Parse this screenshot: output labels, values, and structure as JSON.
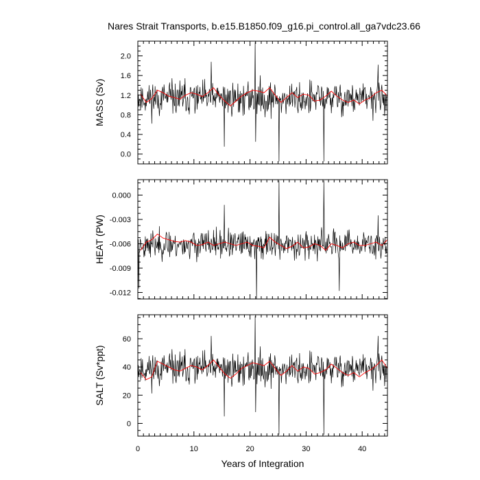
{
  "figure": {
    "title": "Nares Strait Transports, b.e15.B1850.f09_g16.pi_control.all_ga7vdc23.66",
    "xlabel": "Years of Integration"
  },
  "chart_data": [
    {
      "type": "line",
      "ylabel": "MASS (Sv)",
      "xlim": [
        0,
        44.5
      ],
      "ylim": [
        -0.2,
        2.3
      ],
      "xticks": [
        0,
        10,
        20,
        30,
        40
      ],
      "yticks": [
        0.0,
        0.4,
        0.8,
        1.2,
        1.6,
        2.0
      ],
      "ytick_labels": [
        "0.0",
        "0.4",
        "0.8",
        "1.2",
        "1.6",
        "2.0"
      ],
      "grid": false,
      "series": [
        {
          "color": "#000000",
          "role": "monthly",
          "base": 1.13,
          "amp": 0.28,
          "seed": 11,
          "spikes": [
            [
              13.1,
              1.88
            ],
            [
              15.4,
              0.15
            ],
            [
              20.9,
              2.28
            ],
            [
              21.0,
              0.25
            ],
            [
              25.2,
              -0.15
            ],
            [
              33.2,
              -0.15
            ],
            [
              42.8,
              1.82
            ]
          ]
        },
        {
          "color": "#ff0000",
          "role": "annual-mean",
          "x": [
            0.5,
            1.5,
            2.5,
            3.5,
            4.5,
            5.5,
            6.5,
            7.5,
            8.5,
            9.5,
            10.5,
            11.5,
            12.5,
            13.5,
            14.5,
            15.5,
            16.5,
            17.5,
            18.5,
            19.5,
            20.5,
            21.5,
            22.5,
            23.5,
            24.5,
            25.5,
            26.5,
            27.5,
            28.5,
            29.5,
            30.5,
            31.5,
            32.5,
            33.5,
            34.5,
            35.5,
            36.5,
            37.5,
            38.5,
            39.5,
            40.5,
            41.5,
            42.5,
            43.5,
            44.5
          ],
          "y": [
            1.22,
            1.05,
            1.13,
            1.3,
            1.25,
            1.18,
            1.15,
            1.12,
            1.2,
            1.25,
            1.22,
            1.17,
            1.25,
            1.35,
            1.2,
            1.08,
            0.98,
            1.08,
            1.18,
            1.25,
            1.3,
            1.28,
            1.25,
            1.35,
            1.2,
            1.05,
            1.15,
            1.25,
            1.15,
            1.22,
            1.2,
            1.08,
            1.1,
            1.18,
            1.28,
            1.18,
            1.1,
            1.05,
            1.1,
            1.02,
            1.1,
            1.15,
            1.25,
            1.3,
            1.18
          ]
        }
      ]
    },
    {
      "type": "line",
      "ylabel": "HEAT (PW)",
      "xlim": [
        0,
        44.5
      ],
      "ylim": [
        -0.0128,
        0.0019
      ],
      "xticks": [
        0,
        10,
        20,
        30,
        40
      ],
      "yticks": [
        -0.012,
        -0.009,
        -0.006,
        -0.003,
        0.0
      ],
      "ytick_labels": [
        "-0.012",
        "-0.009",
        "-0.006",
        "-0.003",
        "0.000"
      ],
      "grid": false,
      "series": [
        {
          "color": "#000000",
          "role": "monthly",
          "base": -0.0061,
          "amp": 0.0014,
          "seed": 23,
          "spikes": [
            [
              0.2,
              -0.0115
            ],
            [
              15.4,
              -0.0012
            ],
            [
              21.2,
              -0.0128
            ],
            [
              25.2,
              0.0018
            ],
            [
              33.2,
              0.0018
            ],
            [
              35.9,
              -0.0118
            ],
            [
              42.8,
              -0.0025
            ]
          ]
        },
        {
          "color": "#ff0000",
          "role": "annual-mean",
          "x": [
            0.5,
            1.5,
            2.5,
            3.5,
            4.5,
            5.5,
            6.5,
            7.5,
            8.5,
            9.5,
            10.5,
            11.5,
            12.5,
            13.5,
            14.5,
            15.5,
            16.5,
            17.5,
            18.5,
            19.5,
            20.5,
            21.5,
            22.5,
            23.5,
            24.5,
            25.5,
            26.5,
            27.5,
            28.5,
            29.5,
            30.5,
            31.5,
            32.5,
            33.5,
            34.5,
            35.5,
            36.5,
            37.5,
            38.5,
            39.5,
            40.5,
            41.5,
            42.5,
            43.5,
            44.5
          ],
          "y": [
            -0.0068,
            -0.0058,
            -0.0055,
            -0.0048,
            -0.0053,
            -0.0055,
            -0.0057,
            -0.0058,
            -0.0056,
            -0.0058,
            -0.0062,
            -0.0061,
            -0.0058,
            -0.0062,
            -0.006,
            -0.0058,
            -0.006,
            -0.0062,
            -0.006,
            -0.0058,
            -0.0062,
            -0.0063,
            -0.0065,
            -0.0052,
            -0.0058,
            -0.0062,
            -0.0066,
            -0.0063,
            -0.0058,
            -0.0065,
            -0.0064,
            -0.006,
            -0.0062,
            -0.0068,
            -0.006,
            -0.0062,
            -0.0065,
            -0.006,
            -0.0058,
            -0.0062,
            -0.0062,
            -0.006,
            -0.0058,
            -0.0062,
            -0.0055
          ]
        }
      ]
    },
    {
      "type": "line",
      "ylabel": "SALT (Sv*ppt)",
      "xlim": [
        0,
        44.5
      ],
      "ylim": [
        -9,
        77
      ],
      "xticks": [
        0,
        10,
        20,
        30,
        40
      ],
      "xtick_labels": [
        "0",
        "10",
        "20",
        "30",
        "40"
      ],
      "yticks": [
        0,
        20,
        40,
        60
      ],
      "ytick_labels": [
        "0",
        "20",
        "40",
        "60"
      ],
      "grid": false,
      "series": [
        {
          "color": "#000000",
          "role": "monthly",
          "base": 38.5,
          "amp": 9.5,
          "seed": 11,
          "spikes": [
            [
              13.1,
              62
            ],
            [
              15.4,
              5
            ],
            [
              20.9,
              76
            ],
            [
              21.0,
              8
            ],
            [
              25.2,
              -8
            ],
            [
              33.2,
              -8
            ],
            [
              42.8,
              62
            ]
          ]
        },
        {
          "color": "#ff0000",
          "role": "annual-mean",
          "x": [
            0.5,
            1.5,
            2.5,
            3.5,
            4.5,
            5.5,
            6.5,
            7.5,
            8.5,
            9.5,
            10.5,
            11.5,
            12.5,
            13.5,
            14.5,
            15.5,
            16.5,
            17.5,
            18.5,
            19.5,
            20.5,
            21.5,
            22.5,
            23.5,
            24.5,
            25.5,
            26.5,
            27.5,
            28.5,
            29.5,
            30.5,
            31.5,
            32.5,
            33.5,
            34.5,
            35.5,
            36.5,
            37.5,
            38.5,
            39.5,
            40.5,
            41.5,
            42.5,
            43.5,
            44.5
          ],
          "y": [
            36,
            31,
            33,
            44,
            42,
            40,
            38,
            37,
            39,
            41,
            40,
            38,
            41,
            45,
            40,
            35,
            32,
            35,
            39,
            41,
            43,
            42,
            41,
            44,
            39,
            34,
            37,
            41,
            37,
            40,
            39,
            35,
            36,
            38,
            42,
            39,
            36,
            34,
            36,
            33,
            36,
            38,
            41,
            45,
            39
          ]
        }
      ]
    }
  ]
}
